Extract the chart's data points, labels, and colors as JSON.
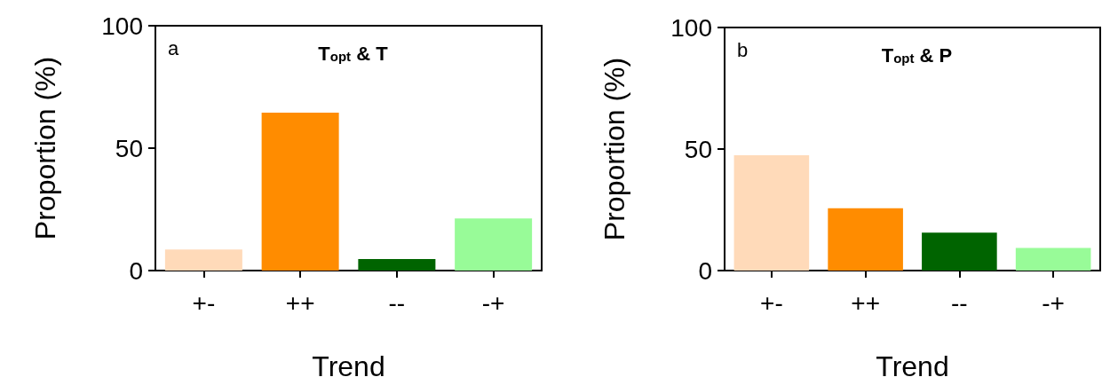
{
  "chart_data": [
    {
      "type": "bar",
      "title": "T$_{opt}$ & T",
      "annotations": [
        "a"
      ],
      "xlabel": "Trend",
      "ylabel": "Proportion (%)",
      "categories": [
        "+-",
        "++",
        "--",
        "-+"
      ],
      "values": [
        8.6,
        64.5,
        4.7,
        21.3
      ],
      "colors": [
        "#ffdab9",
        "#ff8c00",
        "#006400",
        "#98fb98"
      ],
      "ylim": [
        0,
        100
      ],
      "yticks": [
        0,
        50,
        100
      ]
    },
    {
      "type": "bar",
      "title": "T$_{opt}$ & P",
      "annotations": [
        "b"
      ],
      "xlabel": "Trend",
      "ylabel": "Proportion (%)",
      "categories": [
        "+-",
        "++",
        "--",
        "-+"
      ],
      "values": [
        47.4,
        25.6,
        15.6,
        9.3
      ],
      "colors": [
        "#ffdab9",
        "#ff8c00",
        "#006400",
        "#98fb98"
      ],
      "ylim": [
        0,
        100
      ],
      "yticks": [
        0,
        50,
        100
      ]
    }
  ]
}
